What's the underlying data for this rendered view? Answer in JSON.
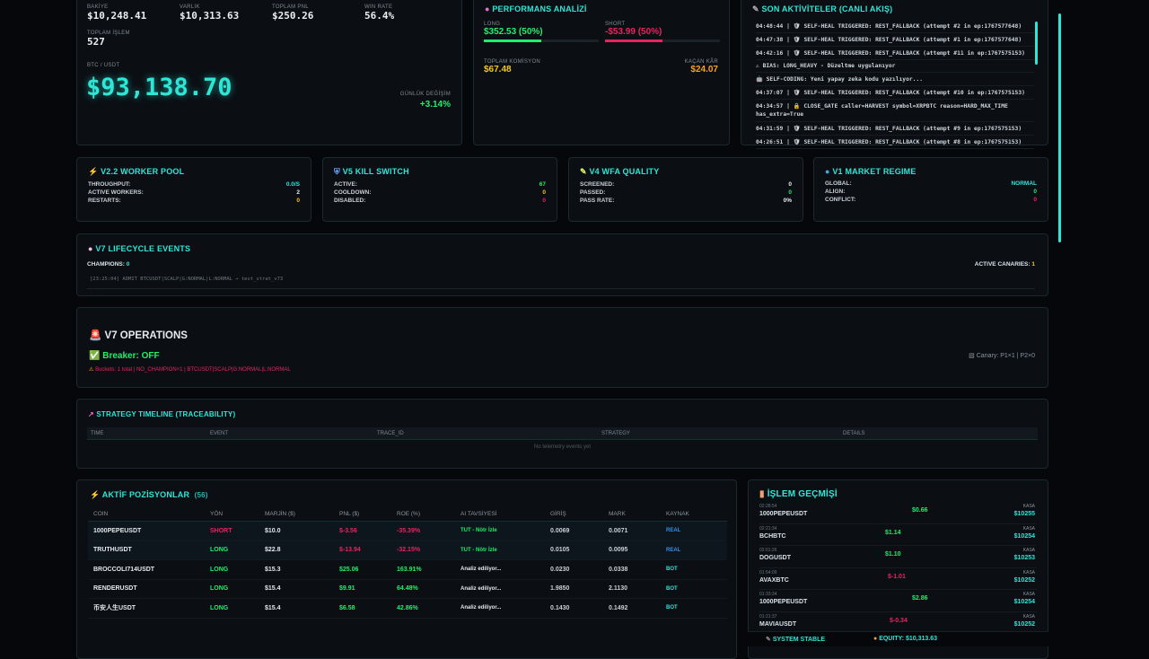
{
  "summary": {
    "balance_label": "BAKİYE",
    "balance": "$10,248.41",
    "equity_label": "VARLIK",
    "equity": "$10,313.63",
    "pnl_label": "TOPLAM PNL",
    "pnl": "$250.26",
    "winrate_label": "WIN RATE",
    "winrate": "56.4%",
    "trades_label": "TOPLAM İŞLEM",
    "trades": "527",
    "pair_label": "BTC / USDT",
    "price": "$93,138.70",
    "change_label": "GÜNLÜK DEĞİŞİM",
    "change": "+3.14%"
  },
  "performance": {
    "title": "PERFORMANS ANALİZİ",
    "long_label": "LONG",
    "long_value": "$352.53 (50%)",
    "long_pct": 50,
    "short_label": "SHORT",
    "short_value": "-$53.99 (50%)",
    "short_pct": 50,
    "commission_label": "TOPLAM KOMİSYON",
    "commission": "$67.48",
    "missed_label": "KAÇAN KÂR",
    "missed": "$24.07"
  },
  "activity": {
    "title": "SON AKTİVİTELER (CANLI AKIŞ)",
    "items": [
      "04:48:44 | 🛡 SELF-HEAL TRIGGERED: REST_FALLBACK (attempt #2 in ep:1767577648)",
      "04:47:38 | 🛡 SELF-HEAL TRIGGERED: REST_FALLBACK (attempt #1 in ep:1767577648)",
      "04:42:16 | 🛡 SELF-HEAL TRIGGERED: REST_FALLBACK (attempt #11 in ep:1767575153)",
      "⚠ BIAS: LONG_HEAVY - Düzeltme uygulanıyor",
      "🤖 SELF-CODING: Yeni yapay zeka kodu yazılıyor...",
      "04:37:07 | 🛡 SELF-HEAL TRIGGERED: REST_FALLBACK (attempt #10 in ep:1767575153)",
      "04:34:57 | 🔒 CLOSE_GATE caller=HARVEST symbol=XRPBTC reason=HARD_MAX_TIME has_extra=True",
      "04:31:59 | 🛡 SELF-HEAL TRIGGERED: REST_FALLBACK (attempt #9 in ep:1767575153)",
      "04:26:51 | 🛡 SELF-HEAL TRIGGERED: REST_FALLBACK (attempt #8 in ep:1767575153)"
    ]
  },
  "worker_pool": {
    "title": "V2.2 WORKER POOL",
    "rows": [
      {
        "k": "THROUGHPUT:",
        "v": "0.0/s"
      },
      {
        "k": "ACTIVE WORKERS:",
        "v": "2"
      },
      {
        "k": "RESTARTS:",
        "v": "0"
      }
    ]
  },
  "kill_switch": {
    "title": "V5 KILL SWITCH",
    "rows": [
      {
        "k": "ACTIVE:",
        "v": "67"
      },
      {
        "k": "COOLDOWN:",
        "v": "0"
      },
      {
        "k": "DISABLED:",
        "v": "0"
      }
    ]
  },
  "wfa": {
    "title": "V4 WFA QUALITY",
    "rows": [
      {
        "k": "SCREENED:",
        "v": "0"
      },
      {
        "k": "PASSED:",
        "v": "0"
      },
      {
        "k": "PASS RATE:",
        "v": "0%"
      }
    ]
  },
  "regime": {
    "title": "V1 MARKET REGIME",
    "rows": [
      {
        "k": "GLOBAL:",
        "v": "NORMAL"
      },
      {
        "k": "ALIGN:",
        "v": "0"
      },
      {
        "k": "CONFLICT:",
        "v": "0"
      }
    ]
  },
  "lifecycle": {
    "title": "V7 LIFECYCLE EVENTS",
    "champions_label": "CHAMPIONS:",
    "champions": "0",
    "canaries_label": "ACTIVE CANARIES:",
    "canaries": "1",
    "log": "[23:25:04] ADMIT BTCUSDT|SCALP|G:NORMAL|L:NORMAL → test_strat_v73"
  },
  "operations": {
    "title": "V7 OPERATIONS",
    "breaker": "Breaker: OFF",
    "buckets": "Buckets: 1 total | NO_CHAMPION×1 | BTCUSDT|SCALP|G:NORMAL|L:NORMAL",
    "canary": "Canary: P1×1 | P2×0"
  },
  "timeline": {
    "title": "STRATEGY TIMELINE (TRACEABILITY)",
    "columns": [
      "TIME",
      "EVENT",
      "TRACE_ID",
      "STRATEGY",
      "DETAILS"
    ],
    "empty": "No telemetry events yet"
  },
  "positions": {
    "title": "AKTİF POZİSYONLAR",
    "count": "(56)",
    "columns": [
      "COIN",
      "YÖN",
      "MARJİN ($)",
      "PNL ($)",
      "ROE (%)",
      "AI TAVSİYESİ",
      "GİRİŞ",
      "MARK",
      "KAYNAK"
    ],
    "rows": [
      [
        "1000PEPEUSDT",
        "SHORT",
        "$10.0",
        "$-3.56",
        "-35.39%",
        "TUT - Nötr İzle",
        "0.0069",
        "0.0071",
        "REAL"
      ],
      [
        "TRUTHUSDT",
        "LONG",
        "$22.8",
        "$-13.94",
        "-32.15%",
        "TUT - Nötr İzle",
        "0.0105",
        "0.0095",
        "REAL"
      ],
      [
        "BROCCOLI714USDT",
        "LONG",
        "$15.3",
        "$25.06",
        "163.91%",
        "Analiz ediliyor...",
        "0.0230",
        "0.0338",
        "BOT"
      ],
      [
        "RENDERUSDT",
        "LONG",
        "$15.4",
        "$9.91",
        "64.48%",
        "Analiz ediliyor...",
        "1.9850",
        "2.1130",
        "BOT"
      ],
      [
        "币安人生USDT",
        "LONG",
        "$15.4",
        "$6.58",
        "42.86%",
        "Analiz ediliyor...",
        "0.1430",
        "0.1492",
        "BOT"
      ]
    ]
  },
  "history": {
    "title": "İŞLEM GEÇMİŞİ",
    "rows": [
      {
        "time": "02:28:54",
        "coin": "1000PEPEUSDT",
        "pnl": "$0.66",
        "type": "KASA",
        "bal": "$10255"
      },
      {
        "time": "02:21:34",
        "coin": "BCHBTC",
        "pnl": "$1.14",
        "type": "KASA",
        "bal": "$10254"
      },
      {
        "time": "02:01:26",
        "coin": "DOGUSDT",
        "pnl": "$1.10",
        "type": "KASA",
        "bal": "$10253"
      },
      {
        "time": "01:54:09",
        "coin": "AVAXBTC",
        "pnl": "$-1.01",
        "type": "KASA",
        "bal": "$10252"
      },
      {
        "time": "01:33:34",
        "coin": "1000PEPEUSDT",
        "pnl": "$2.86",
        "type": "KASA",
        "bal": "$10254"
      },
      {
        "time": "01:21:37",
        "coin": "MAVIAUSDT",
        "pnl": "$-0.34",
        "type": "KASA",
        "bal": "$10252"
      }
    ]
  },
  "footer": {
    "status": "SYSTEM STABLE",
    "equity": "EQUITY: $10,313.63"
  },
  "colors": {
    "accent": "#2ee6d6",
    "positive": "#1ef06a",
    "negative": "#e8245e",
    "warning": "#f5c518"
  }
}
